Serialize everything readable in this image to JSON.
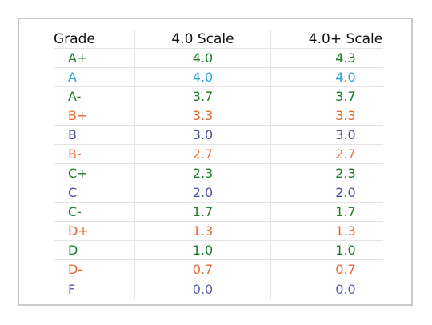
{
  "table": {
    "headers": [
      "Grade",
      "4.0 Scale",
      "4.0+ Scale"
    ],
    "rows": [
      {
        "grade": "A+",
        "scale_4_0": "4.0",
        "scale_4_0_plus": "4.3",
        "color": "#1a7a2a"
      },
      {
        "grade": "A",
        "scale_4_0": "4.0",
        "scale_4_0_plus": "4.0",
        "color": "#2aa3d8"
      },
      {
        "grade": "A-",
        "scale_4_0": "3.7",
        "scale_4_0_plus": "3.7",
        "color": "#1a7a2a"
      },
      {
        "grade": "B+",
        "scale_4_0": "3.3",
        "scale_4_0_plus": "3.3",
        "color": "#e8642d"
      },
      {
        "grade": "B",
        "scale_4_0": "3.0",
        "scale_4_0_plus": "3.0",
        "color": "#4b4fa0"
      },
      {
        "grade": "B-",
        "scale_4_0": "2.7",
        "scale_4_0_plus": "2.7",
        "color": "#f07a4c"
      },
      {
        "grade": "C+",
        "scale_4_0": "2.3",
        "scale_4_0_plus": "2.3",
        "color": "#1a7a2a"
      },
      {
        "grade": "C",
        "scale_4_0": "2.0",
        "scale_4_0_plus": "2.0",
        "color": "#4b4fa0"
      },
      {
        "grade": "C-",
        "scale_4_0": "1.7",
        "scale_4_0_plus": "1.7",
        "color": "#1a7a2a"
      },
      {
        "grade": "D+",
        "scale_4_0": "1.3",
        "scale_4_0_plus": "1.3",
        "color": "#e8642d"
      },
      {
        "grade": "D",
        "scale_4_0": "1.0",
        "scale_4_0_plus": "1.0",
        "color": "#1a7a2a"
      },
      {
        "grade": "D-",
        "scale_4_0": "0.7",
        "scale_4_0_plus": "0.7",
        "color": "#e8642d"
      },
      {
        "grade": "F",
        "scale_4_0": "0.0",
        "scale_4_0_plus": "0.0",
        "color": "#5a5fb0"
      }
    ]
  }
}
